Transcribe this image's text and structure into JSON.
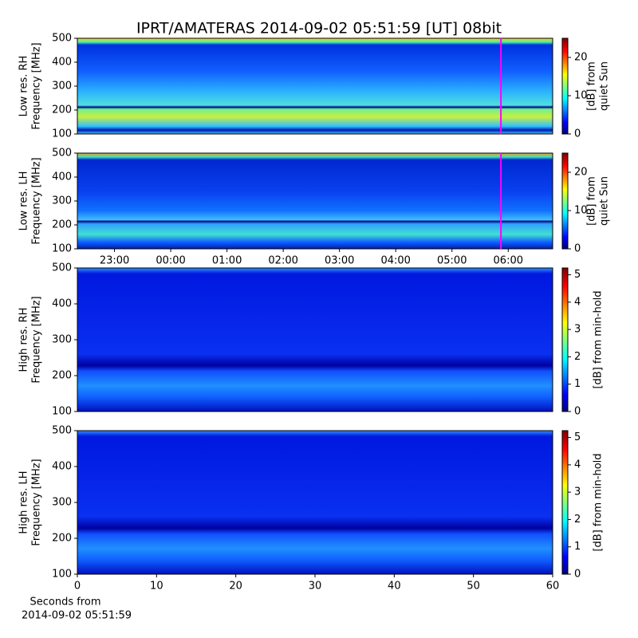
{
  "chart_data": {
    "title": "IPRT/AMATERAS 2014-09-02 05:51:59 [UT]   08bit",
    "xlabel": [
      "Seconds from",
      "2014-09-02 05:51:59"
    ],
    "panels": [
      {
        "type": "heatmap",
        "ylabel": [
          "Low res. RH",
          "Frequency [MHz]"
        ],
        "ylim": [
          100,
          500
        ],
        "yticks": [
          100,
          200,
          300,
          400,
          500
        ],
        "xlim": [
          -1.66,
          6.79
        ],
        "marker": {
          "x": 5.87,
          "color": "#ff00ff"
        },
        "colorbar": {
          "label": [
            "[dB] from",
            "quiet Sun"
          ],
          "lim": [
            0,
            25
          ],
          "ticks": [
            0,
            10,
            20
          ]
        }
      },
      {
        "type": "heatmap",
        "ylabel": [
          "Low res. LH",
          "Frequency [MHz]"
        ],
        "ylim": [
          100,
          500
        ],
        "yticks": [
          100,
          200,
          300,
          400,
          500
        ],
        "xlim": [
          -1.66,
          6.79
        ],
        "marker": {
          "x": 5.87,
          "color": "#ff00ff"
        },
        "xticks": [
          {
            "value": -1,
            "label": "23:00"
          },
          {
            "value": 0,
            "label": "00:00"
          },
          {
            "value": 1,
            "label": "01:00"
          },
          {
            "value": 2,
            "label": "02:00"
          },
          {
            "value": 3,
            "label": "03:00"
          },
          {
            "value": 4,
            "label": "04:00"
          },
          {
            "value": 5,
            "label": "05:00"
          },
          {
            "value": 6,
            "label": "06:00"
          }
        ],
        "colorbar": {
          "label": [
            "[dB] from",
            "quiet Sun"
          ],
          "lim": [
            0,
            25
          ],
          "ticks": [
            0,
            10,
            20
          ]
        }
      },
      {
        "type": "heatmap",
        "ylabel": [
          "High res. RH",
          "Frequency [MHz]"
        ],
        "ylim": [
          100,
          500
        ],
        "yticks": [
          100,
          200,
          300,
          400,
          500
        ],
        "xlim": [
          0,
          60
        ],
        "colorbar": {
          "label": [
            "[dB] from min-hold"
          ],
          "lim": [
            0,
            5.25
          ],
          "ticks": [
            0,
            1,
            2,
            3,
            4,
            5
          ]
        }
      },
      {
        "type": "heatmap",
        "ylabel": [
          "High res. LH",
          "Frequency [MHz]"
        ],
        "ylim": [
          100,
          500
        ],
        "yticks": [
          100,
          200,
          300,
          400,
          500
        ],
        "xlim": [
          0,
          60
        ],
        "xticks": [
          0,
          10,
          20,
          30,
          40,
          50,
          60
        ],
        "colorbar": {
          "label": [
            "[dB] from min-hold"
          ],
          "lim": [
            0,
            5.25
          ],
          "ticks": [
            0,
            1,
            2,
            3,
            4,
            5
          ]
        }
      }
    ]
  }
}
